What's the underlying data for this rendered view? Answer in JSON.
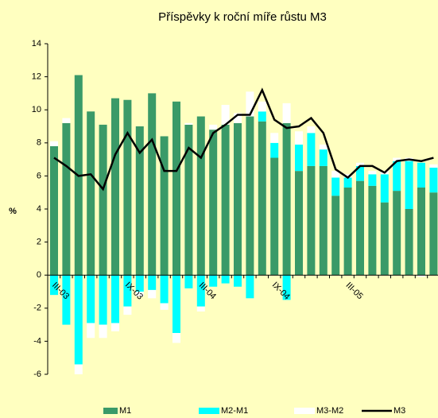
{
  "chart_data": {
    "type": "bar_line",
    "title": "Příspěvky k roční míře růstu M3",
    "y_label": "%",
    "categories": [
      "III-03",
      null,
      null,
      null,
      null,
      null,
      "IX-03",
      null,
      null,
      null,
      null,
      null,
      "III-04",
      null,
      null,
      null,
      null,
      null,
      "IX-04",
      null,
      null,
      null,
      null,
      null,
      "III-05",
      null,
      null,
      null,
      null,
      null,
      null,
      null
    ],
    "ylim": [
      -6,
      14
    ],
    "yticks": [
      -6,
      -4,
      -2,
      0,
      2,
      4,
      6,
      8,
      10,
      12,
      14
    ],
    "series": [
      {
        "name": "M1",
        "type": "bar",
        "color": "#3a9a68",
        "values": [
          7.8,
          9.2,
          12.1,
          9.9,
          9.1,
          10.7,
          10.6,
          9.0,
          11.0,
          8.4,
          10.5,
          9.1,
          9.6,
          8.8,
          9.1,
          9.2,
          9.6,
          9.3,
          7.1,
          9.2,
          6.3,
          6.6,
          6.6,
          4.8,
          5.3,
          5.7,
          5.4,
          4.4,
          5.1,
          4.0,
          5.3,
          5.0
        ]
      },
      {
        "name": "M2-M1",
        "type": "bar",
        "color": "#00ffff",
        "values": [
          -1.2,
          -3.0,
          -5.4,
          -2.9,
          -3.0,
          -2.9,
          -1.9,
          -1.0,
          -0.9,
          -1.7,
          -3.5,
          -0.8,
          -1.9,
          -0.7,
          -0.5,
          -0.7,
          -1.4,
          0.6,
          0.9,
          -1.5,
          1.6,
          2.0,
          1.0,
          1.1,
          0.6,
          0.9,
          0.7,
          1.7,
          1.8,
          2.9,
          1.5,
          1.5
        ]
      },
      {
        "name": "M3-M2",
        "type": "bar",
        "color": "#ffffff",
        "values": [
          0.3,
          0.3,
          -0.6,
          -0.9,
          -0.8,
          -0.5,
          -0.5,
          -0.3,
          -0.5,
          -0.4,
          -0.6,
          0.1,
          -0.3,
          0.3,
          1.2,
          0.6,
          1.5,
          0.6,
          0.6,
          1.2,
          0.8,
          0.4,
          0.3,
          0.4,
          0.2,
          0.2,
          0.2,
          0.2,
          0.2,
          0.2,
          -0.1,
          0.2
        ]
      },
      {
        "name": "M3",
        "type": "line",
        "color": "#000000",
        "values": [
          7.1,
          6.6,
          6.0,
          6.1,
          5.2,
          7.3,
          8.6,
          7.4,
          8.2,
          6.3,
          6.3,
          7.7,
          7.1,
          8.6,
          9.1,
          9.7,
          9.7,
          11.2,
          9.4,
          8.9,
          9.0,
          9.5,
          8.6,
          6.4,
          5.9,
          6.6,
          6.6,
          6.2,
          6.9,
          7.0,
          6.9,
          7.1
        ]
      }
    ]
  }
}
